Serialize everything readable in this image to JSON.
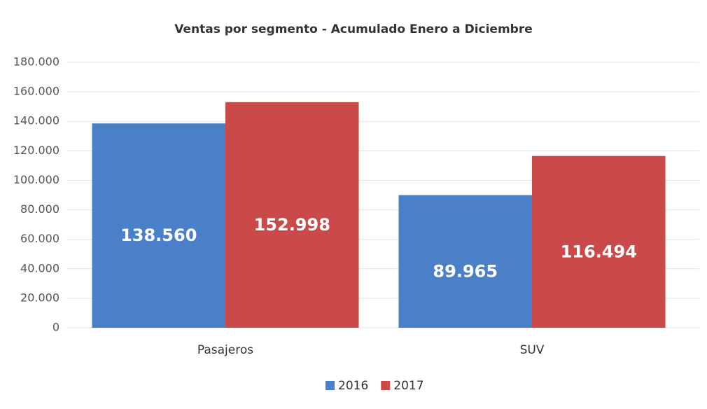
{
  "chart_data": {
    "type": "bar",
    "title": "Ventas por segmento - Acumulado Enero a Diciembre",
    "categories": [
      "Pasajeros",
      "SUV"
    ],
    "series": [
      {
        "name": "2016",
        "color": "#4a80c8",
        "values": [
          138560,
          89965
        ],
        "value_labels": [
          "138.560",
          "89.965"
        ]
      },
      {
        "name": "2017",
        "color": "#c94a48",
        "values": [
          152998,
          116494
        ],
        "value_labels": [
          "152.998",
          "116.494"
        ]
      }
    ],
    "ylim": [
      0,
      180000
    ],
    "yticks": [
      0,
      {
        "value": 20000,
        "label": "20.000"
      },
      {
        "value": 40000,
        "label": "40.000"
      },
      {
        "value": 60000,
        "label": "60.000"
      },
      {
        "value": 80000,
        "label": "80.000"
      },
      {
        "value": 100000,
        "label": "100.000"
      },
      {
        "value": 120000,
        "label": "120.000"
      },
      {
        "value": 140000,
        "label": "140.000"
      },
      {
        "value": 160000,
        "label": "160.000"
      },
      {
        "value": 180000,
        "label": "180.000"
      }
    ],
    "grid": true,
    "legend": "bottom"
  }
}
